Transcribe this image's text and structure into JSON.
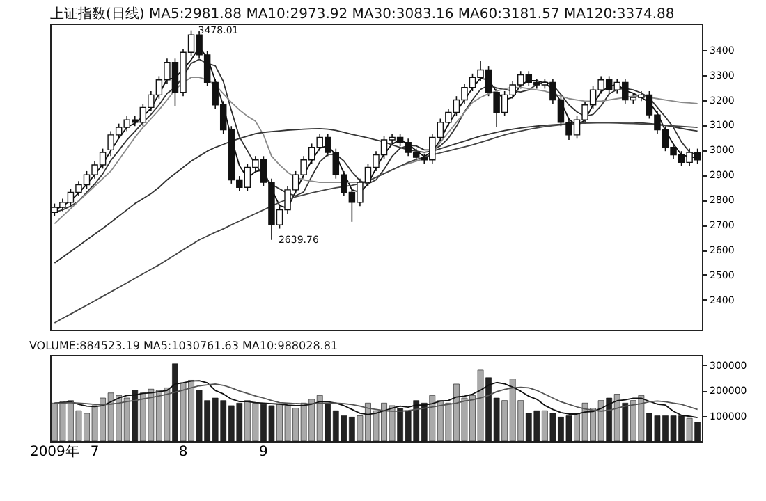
{
  "chart_data": [
    {
      "type": "candlestick",
      "title": "上证指数(日线) MA5:2981.88 MA10:2973.92 MA30:3083.16 MA60:3181.57 MA120:3374.88",
      "categories": [
        null,
        null,
        null,
        null,
        null,
        null,
        null,
        null,
        null,
        null,
        null,
        null,
        null,
        null,
        null,
        null,
        null,
        null,
        null,
        null,
        null,
        null,
        null,
        null,
        null,
        null,
        null,
        null,
        null,
        null,
        null,
        null,
        null,
        null,
        null,
        null,
        null,
        null,
        null,
        null,
        null,
        null,
        null,
        null,
        null,
        null,
        null,
        null,
        null,
        null,
        null,
        null,
        null,
        null,
        null,
        null,
        null,
        null,
        null,
        null,
        null,
        null,
        null,
        null,
        null,
        null,
        null,
        null,
        null,
        null,
        null,
        null,
        null,
        null,
        null,
        null,
        null,
        null,
        null,
        null,
        null
      ],
      "ohlc": [
        [
          2750,
          2785,
          2735,
          2770
        ],
        [
          2770,
          2805,
          2755,
          2790
        ],
        [
          2790,
          2845,
          2775,
          2830
        ],
        [
          2830,
          2875,
          2815,
          2860
        ],
        [
          2860,
          2915,
          2845,
          2900
        ],
        [
          2900,
          2955,
          2885,
          2940
        ],
        [
          2940,
          3005,
          2925,
          2990
        ],
        [
          3000,
          3075,
          2975,
          3060
        ],
        [
          3060,
          3105,
          3045,
          3090
        ],
        [
          3090,
          3135,
          3075,
          3120
        ],
        [
          3120,
          3135,
          3095,
          3110
        ],
        [
          3110,
          3185,
          3095,
          3170
        ],
        [
          3170,
          3235,
          3155,
          3220
        ],
        [
          3220,
          3295,
          3205,
          3280
        ],
        [
          3280,
          3365,
          3265,
          3350
        ],
        [
          3350,
          3365,
          3175,
          3230
        ],
        [
          3230,
          3405,
          3215,
          3390
        ],
        [
          3390,
          3478.01,
          3375,
          3460
        ],
        [
          3460,
          3475,
          3365,
          3380
        ],
        [
          3380,
          3395,
          3255,
          3270
        ],
        [
          3270,
          3285,
          3165,
          3180
        ],
        [
          3180,
          3195,
          3065,
          3080
        ],
        [
          3080,
          3095,
          2865,
          2880
        ],
        [
          2880,
          2895,
          2835,
          2850
        ],
        [
          2850,
          2945,
          2835,
          2930
        ],
        [
          2930,
          2975,
          2915,
          2960
        ],
        [
          2960,
          2975,
          2855,
          2870
        ],
        [
          2870,
          2885,
          2639.76,
          2700
        ],
        [
          2700,
          2775,
          2685,
          2760
        ],
        [
          2760,
          2855,
          2745,
          2840
        ],
        [
          2840,
          2915,
          2825,
          2900
        ],
        [
          2900,
          2975,
          2885,
          2960
        ],
        [
          2960,
          3025,
          2945,
          3010
        ],
        [
          3010,
          3065,
          2995,
          3050
        ],
        [
          3050,
          3065,
          2975,
          2990
        ],
        [
          2990,
          3005,
          2885,
          2900
        ],
        [
          2900,
          2915,
          2815,
          2830
        ],
        [
          2830,
          2845,
          2712,
          2790
        ],
        [
          2790,
          2885,
          2775,
          2870
        ],
        [
          2870,
          2945,
          2855,
          2930
        ],
        [
          2930,
          2995,
          2915,
          2980
        ],
        [
          2980,
          3055,
          2965,
          3040
        ],
        [
          3040,
          3065,
          3025,
          3050
        ],
        [
          3050,
          3065,
          3015,
          3030
        ],
        [
          3030,
          3045,
          2975,
          2990
        ],
        [
          2990,
          3005,
          2955,
          2970
        ],
        [
          2970,
          2985,
          2945,
          2960
        ],
        [
          2960,
          3065,
          2945,
          3050
        ],
        [
          3050,
          3125,
          3035,
          3110
        ],
        [
          3110,
          3165,
          3095,
          3150
        ],
        [
          3150,
          3215,
          3135,
          3200
        ],
        [
          3200,
          3265,
          3185,
          3250
        ],
        [
          3250,
          3305,
          3235,
          3290
        ],
        [
          3290,
          3355,
          3275,
          3320
        ],
        [
          3320,
          3335,
          3215,
          3230
        ],
        [
          3230,
          3245,
          3090,
          3150
        ],
        [
          3150,
          3235,
          3135,
          3220
        ],
        [
          3220,
          3275,
          3205,
          3260
        ],
        [
          3260,
          3315,
          3245,
          3300
        ],
        [
          3300,
          3315,
          3255,
          3270
        ],
        [
          3270,
          3285,
          3245,
          3260
        ],
        [
          3260,
          3285,
          3245,
          3270
        ],
        [
          3270,
          3285,
          3185,
          3200
        ],
        [
          3200,
          3215,
          3095,
          3110
        ],
        [
          3110,
          3125,
          3040,
          3060
        ],
        [
          3060,
          3135,
          3045,
          3120
        ],
        [
          3120,
          3195,
          3105,
          3180
        ],
        [
          3180,
          3255,
          3165,
          3240
        ],
        [
          3240,
          3295,
          3225,
          3280
        ],
        [
          3280,
          3295,
          3225,
          3240
        ],
        [
          3240,
          3285,
          3225,
          3270
        ],
        [
          3270,
          3285,
          3185,
          3200
        ],
        [
          3200,
          3225,
          3185,
          3210
        ],
        [
          3210,
          3235,
          3195,
          3220
        ],
        [
          3220,
          3235,
          3125,
          3140
        ],
        [
          3140,
          3155,
          3065,
          3080
        ],
        [
          3080,
          3095,
          2995,
          3010
        ],
        [
          3010,
          3025,
          2965,
          2980
        ],
        [
          2980,
          2995,
          2935,
          2950
        ],
        [
          2950,
          3005,
          2935,
          2990
        ],
        [
          2990,
          3005,
          2945,
          2960
        ]
      ],
      "series": [
        {
          "type": "line",
          "color": "#111111",
          "values": [
            2760,
            2775,
            2797,
            2827,
            2863,
            2900,
            2943,
            2997,
            3047,
            3090,
            3107,
            3133,
            3167,
            3223,
            3283,
            3287,
            3323,
            3360,
            3410,
            3370,
            3277,
            3177,
            3047,
            2937,
            2887,
            2913,
            2920,
            2843,
            2777,
            2767,
            2833,
            2900,
            2957,
            3007,
            3017,
            2980,
            2907,
            2840,
            2830,
            2863,
            2927,
            2983,
            3023,
            3040,
            3023,
            2997,
            2973,
            2993,
            3040,
            3103,
            3153,
            3200,
            3247,
            3287,
            3280,
            3233,
            3200,
            3210,
            3260,
            3277,
            3277,
            3267,
            3243,
            3193,
            3123,
            3097,
            3120,
            3180,
            3233,
            3253,
            3263,
            3237,
            3227,
            3210,
            3190,
            3147,
            3077,
            3023,
            2980,
            2973,
            2967
          ]
        },
        {
          "type": "line",
          "color": "#333333",
          "values": [
            2750,
            2760,
            2775,
            2795,
            2830,
            2864,
            2904,
            2958,
            2998,
            3040,
            3074,
            3110,
            3142,
            3180,
            3226,
            3250,
            3294,
            3346,
            3362,
            3346,
            3336,
            3274,
            3158,
            3052,
            2996,
            2940,
            2898,
            2862,
            2844,
            2826,
            2816,
            2832,
            2894,
            2952,
            2982,
            2982,
            2956,
            2912,
            2876,
            2864,
            2880,
            2922,
            2974,
            3006,
            3018,
            3016,
            3000,
            3000,
            3016,
            3046,
            3094,
            3152,
            3200,
            3242,
            3258,
            3248,
            3242,
            3236,
            3232,
            3240,
            3262,
            3272,
            3260,
            3222,
            3180,
            3152,
            3134,
            3142,
            3176,
            3224,
            3242,
            3246,
            3240,
            3228,
            3208,
            3170,
            3132,
            3090,
            3032,
            2992,
            2978
          ]
        },
        {
          "type": "line",
          "color": "#8a8a8a",
          "values": [
            2705,
            2735,
            2765,
            2795,
            2825,
            2855,
            2885,
            2915,
            2960,
            3005,
            3050,
            3090,
            3125,
            3160,
            3200,
            3240,
            3270,
            3290,
            3290,
            3280,
            3260,
            3225,
            3190,
            3160,
            3135,
            3115,
            3060,
            2975,
            2940,
            2910,
            2890,
            2880,
            2875,
            2870,
            2870,
            2870,
            2870,
            2870,
            2870,
            2875,
            2890,
            2905,
            2920,
            2935,
            2945,
            2955,
            2965,
            2990,
            3030,
            3070,
            3110,
            3150,
            3190,
            3210,
            3225,
            3235,
            3245,
            3250,
            3250,
            3245,
            3240,
            3235,
            3225,
            3215,
            3205,
            3200,
            3195,
            3195,
            3195,
            3200,
            3205,
            3210,
            3215,
            3215,
            3210,
            3205,
            3200,
            3195,
            3190,
            3188,
            3185
          ]
        },
        {
          "type": "line",
          "color": "#333333",
          "values": [
            2547,
            2570,
            2593,
            2616,
            2640,
            2663,
            2686,
            2710,
            2735,
            2760,
            2785,
            2805,
            2825,
            2850,
            2880,
            2905,
            2930,
            2955,
            2975,
            2995,
            3010,
            3022,
            3035,
            3045,
            3055,
            3065,
            3070,
            3073,
            3076,
            3079,
            3081,
            3083,
            3084,
            3085,
            3083,
            3078,
            3070,
            3062,
            3055,
            3048,
            3040,
            3032,
            3020,
            3010,
            3000,
            2995,
            2990,
            2995,
            3005,
            3015,
            3025,
            3035,
            3045,
            3055,
            3063,
            3070,
            3077,
            3083,
            3088,
            3092,
            3095,
            3098,
            3100,
            3102,
            3104,
            3106,
            3108,
            3109,
            3110,
            3110,
            3110,
            3110,
            3110,
            3108,
            3105,
            3102,
            3098,
            3092,
            3086,
            3080,
            3075
          ]
        },
        {
          "type": "line",
          "color": "#444444",
          "values": [
            2308,
            2326,
            2343,
            2361,
            2378,
            2396,
            2414,
            2432,
            2450,
            2468,
            2486,
            2504,
            2522,
            2540,
            2560,
            2580,
            2600,
            2620,
            2640,
            2655,
            2670,
            2684,
            2700,
            2715,
            2730,
            2745,
            2760,
            2775,
            2790,
            2802,
            2812,
            2820,
            2828,
            2835,
            2842,
            2848,
            2853,
            2858,
            2865,
            2875,
            2890,
            2905,
            2920,
            2935,
            2950,
            2962,
            2971,
            2980,
            2988,
            2996,
            3004,
            3012,
            3020,
            3030,
            3040,
            3050,
            3060,
            3068,
            3075,
            3082,
            3088,
            3093,
            3097,
            3100,
            3103,
            3105,
            3107,
            3108,
            3108,
            3108,
            3107,
            3106,
            3105,
            3104,
            3102,
            3100,
            3098,
            3096,
            3094,
            3092,
            3090
          ]
        }
      ],
      "ylim": [
        2280,
        3505
      ],
      "yticks": [
        2400,
        2500,
        2600,
        2700,
        2800,
        2900,
        3000,
        3100,
        3200,
        3300,
        3400
      ],
      "annotations": [
        "3478.01",
        "2639.76"
      ],
      "tick_labels": "y"
    },
    {
      "type": "bar",
      "title": "VOLUME:884523.19 MA5:1030761.63 MA10:988028.81",
      "categories": [
        "2009年",
        null,
        null,
        null,
        null,
        "7",
        null,
        null,
        null,
        null,
        null,
        null,
        null,
        null,
        null,
        null,
        "8",
        null,
        null,
        null,
        null,
        null,
        null,
        null,
        null,
        null,
        "9",
        null,
        null,
        null,
        null,
        null,
        null,
        null,
        null,
        null,
        null,
        null,
        null,
        null,
        null,
        null,
        null,
        null,
        null,
        null,
        null,
        null,
        null,
        null,
        null,
        null,
        null,
        null,
        null,
        null,
        null,
        null,
        null,
        null,
        null,
        null,
        null,
        null,
        null,
        null,
        null,
        null,
        null,
        null,
        null,
        null,
        null,
        null,
        null,
        null,
        null,
        null,
        null,
        null,
        null
      ],
      "series": [
        {
          "type": "bar",
          "values": [
            150000,
            155000,
            160000,
            120000,
            110000,
            140000,
            170000,
            190000,
            180000,
            170000,
            200000,
            190000,
            205000,
            200000,
            210000,
            305000,
            230000,
            240000,
            200000,
            160000,
            170000,
            160000,
            140000,
            150000,
            160000,
            150000,
            145000,
            140000,
            145000,
            140000,
            130000,
            150000,
            165000,
            180000,
            150000,
            120000,
            100000,
            95000,
            100000,
            150000,
            120000,
            150000,
            140000,
            130000,
            120000,
            160000,
            150000,
            180000,
            160000,
            150000,
            225000,
            170000,
            180000,
            280000,
            250000,
            170000,
            160000,
            245000,
            160000,
            110000,
            120000,
            120000,
            110000,
            95000,
            100000,
            110000,
            150000,
            130000,
            160000,
            170000,
            185000,
            150000,
            160000,
            180000,
            110000,
            100000,
            100000,
            100000,
            100000,
            90000,
            75000
          ],
          "colors": [
            "#aaaaaa",
            "#aaaaaa",
            "#aaaaaa",
            "#aaaaaa",
            "#aaaaaa",
            "#aaaaaa",
            "#aaaaaa",
            "#aaaaaa",
            "#aaaaaa",
            "#aaaaaa",
            "#222222",
            "#aaaaaa",
            "#aaaaaa",
            "#aaaaaa",
            "#aaaaaa",
            "#222222",
            "#aaaaaa",
            "#aaaaaa",
            "#222222",
            "#222222",
            "#222222",
            "#222222",
            "#222222",
            "#222222",
            "#aaaaaa",
            "#aaaaaa",
            "#222222",
            "#222222",
            "#aaaaaa",
            "#aaaaaa",
            "#aaaaaa",
            "#aaaaaa",
            "#aaaaaa",
            "#aaaaaa",
            "#222222",
            "#222222",
            "#222222",
            "#222222",
            "#aaaaaa",
            "#aaaaaa",
            "#aaaaaa",
            "#aaaaaa",
            "#aaaaaa",
            "#222222",
            "#222222",
            "#222222",
            "#222222",
            "#aaaaaa",
            "#aaaaaa",
            "#aaaaaa",
            "#aaaaaa",
            "#aaaaaa",
            "#aaaaaa",
            "#aaaaaa",
            "#222222",
            "#222222",
            "#aaaaaa",
            "#aaaaaa",
            "#aaaaaa",
            "#222222",
            "#222222",
            "#aaaaaa",
            "#222222",
            "#222222",
            "#222222",
            "#aaaaaa",
            "#aaaaaa",
            "#aaaaaa",
            "#aaaaaa",
            "#222222",
            "#aaaaaa",
            "#222222",
            "#aaaaaa",
            "#aaaaaa",
            "#222222",
            "#222222",
            "#222222",
            "#222222",
            "#222222",
            "#aaaaaa",
            "#222222"
          ]
        },
        {
          "type": "line",
          "color": "#111111",
          "values": [
            150000,
            152000,
            155000,
            145000,
            138000,
            136000,
            140000,
            155000,
            170000,
            180000,
            182000,
            188000,
            190000,
            195000,
            200000,
            225000,
            230000,
            237000,
            238000,
            230000,
            200000,
            186000,
            166000,
            156000,
            156000,
            152000,
            150000,
            148000,
            146000,
            142000,
            140000,
            141000,
            146000,
            155000,
            155000,
            150000,
            140000,
            125000,
            110000,
            105000,
            110000,
            120000,
            130000,
            138000,
            134000,
            142000,
            142000,
            148000,
            158000,
            160000,
            174000,
            177000,
            185000,
            201000,
            221000,
            231000,
            226000,
            213000,
            197000,
            177000,
            165000,
            141000,
            125000,
            113000,
            107000,
            107000,
            115000,
            117000,
            129000,
            146000,
            159000,
            163000,
            169000,
            169000,
            157000,
            146000,
            142000,
            118000,
            102000,
            98000,
            93000
          ]
        },
        {
          "type": "line",
          "color": "#555555",
          "values": [
            150000,
            150000,
            152000,
            150000,
            148000,
            145000,
            144000,
            146000,
            150000,
            156000,
            160000,
            166000,
            172000,
            178000,
            185000,
            193000,
            201000,
            210000,
            218000,
            222000,
            225000,
            220000,
            210000,
            198000,
            188000,
            178000,
            170000,
            160000,
            152000,
            150000,
            148000,
            147000,
            147000,
            149000,
            150000,
            150000,
            148000,
            144000,
            138000,
            130000,
            125000,
            120000,
            118000,
            118000,
            120000,
            125000,
            130000,
            135000,
            140000,
            145000,
            150000,
            158000,
            163000,
            170000,
            180000,
            195000,
            204000,
            210000,
            212000,
            210000,
            200000,
            185000,
            170000,
            155000,
            145000,
            135000,
            127000,
            122000,
            118000,
            122000,
            130000,
            138000,
            143000,
            148000,
            155000,
            158000,
            155000,
            150000,
            145000,
            135000,
            125000
          ]
        }
      ],
      "ylim": [
        0,
        340000
      ],
      "yticks": [
        100000,
        200000,
        300000
      ]
    }
  ]
}
